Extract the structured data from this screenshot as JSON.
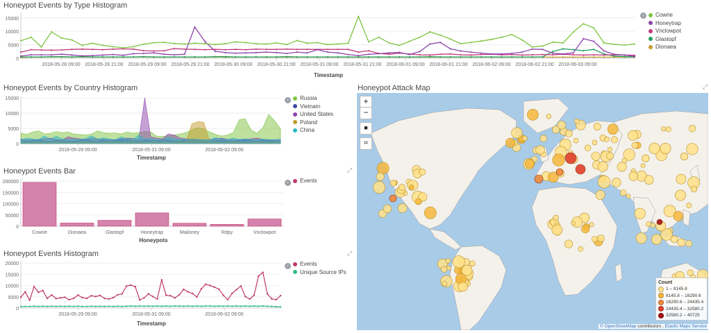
{
  "panels": {
    "type_hist": {
      "title": "Honeypot Events by Type Histogram",
      "xlabel": "Timestamp",
      "legend": [
        {
          "label": "Cowrie",
          "color": "#7ec440"
        },
        {
          "label": "Honeytrap",
          "color": "#8e44ad"
        },
        {
          "label": "Vnclowpot",
          "color": "#c0397a"
        },
        {
          "label": "Glastopf",
          "color": "#1e9e5e"
        },
        {
          "label": "Dionaea",
          "color": "#c49a2c"
        }
      ]
    },
    "country_hist": {
      "title": "Honeypot Events by Country Histogram",
      "xlabel": "Timestamp",
      "legend": [
        {
          "label": "Russia",
          "color": "#7ec440"
        },
        {
          "label": "Vietnam",
          "color": "#3b4aa0"
        },
        {
          "label": "United States",
          "color": "#8e44ad"
        },
        {
          "label": "Poland",
          "color": "#c49a2c"
        },
        {
          "label": "China",
          "color": "#2bb5c4"
        }
      ]
    },
    "events_bar": {
      "title": "Honeypot Events Bar",
      "xlabel": "Honeypots",
      "legend": [
        {
          "label": "Events",
          "color": "#c0396a"
        }
      ]
    },
    "events_hist": {
      "title": "Honeypot Events Histogram",
      "xlabel": "Timestamp",
      "legend": [
        {
          "label": "Events",
          "color": "#c0396a"
        },
        {
          "label": "Unique Source IPs",
          "color": "#2ebd85"
        }
      ]
    },
    "attack_map": {
      "title": "Honeypot Attack Map",
      "controls": {
        "zoom_in": "+",
        "zoom_out": "−",
        "draw": "■",
        "fit": "⌗"
      },
      "legend_title": "Count",
      "legend": [
        {
          "label": "1 – 8145.8",
          "color": "#ffe28a"
        },
        {
          "label": "8145.8 – 16290.6",
          "color": "#f6b73c"
        },
        {
          "label": "16290.6 – 24435.4",
          "color": "#f08a3a"
        },
        {
          "label": "24435.4 – 32580.2",
          "color": "#e0402a"
        },
        {
          "label": "32580.2 – 40725",
          "color": "#a30f15"
        }
      ],
      "attribution": {
        "osm": "© OpenStreetMap",
        "contrib": " contributors , ",
        "ems": "Elastic Maps Service"
      }
    }
  },
  "chart_data": [
    {
      "id": "type_hist",
      "type": "line",
      "title": "Honeypot Events by Type Histogram",
      "xlabel": "Timestamp",
      "ylabel": "",
      "ylim": [
        0,
        17000
      ],
      "yticks": [
        "15000",
        "10000",
        "5000",
        "0"
      ],
      "xticks": [
        "2018-05-28 09:00",
        "2018-05-28 21:00",
        "2018-05-29 09:00",
        "2018-05-29 21:00",
        "2018-05-30 09:00",
        "2018-05-30 21:00",
        "2018-05-31 09:00",
        "2018-05-31 21:00",
        "2018-06-01 09:00",
        "2018-06-01 21:00",
        "2018-06-02 09:00",
        "2018-06-02 21:00",
        "2018-06-03 09:00"
      ],
      "series": [
        {
          "name": "Cowrie",
          "color": "#7ec440",
          "values": [
            6500,
            7800,
            4200,
            9800,
            7500,
            6800,
            4800,
            5600,
            4800,
            4300,
            3900,
            4300,
            5200,
            5800,
            5900,
            5500,
            5300,
            5600,
            5400,
            5100,
            5400,
            6100,
            5800,
            5400,
            5300,
            5700,
            5100,
            6600,
            5600,
            5800,
            5100,
            5300,
            5600,
            15500,
            6100,
            7800,
            5700,
            4800,
            6300,
            7800,
            9800,
            8600,
            7100,
            5400,
            5900,
            6400,
            7000,
            7800,
            8800,
            6800,
            4200,
            4500,
            6000,
            5700,
            9700,
            12800,
            11300,
            5700,
            5200,
            4900,
            5300
          ]
        },
        {
          "name": "Honeytrap",
          "color": "#8e44ad",
          "values": [
            800,
            1300,
            1300,
            1300,
            1500,
            1200,
            900,
            1000,
            1200,
            1400,
            1100,
            1700,
            1800,
            2000,
            1500,
            1300,
            1500,
            11600,
            6200,
            2600,
            2100,
            1900,
            2000,
            2100,
            2300,
            2100,
            1800,
            2300,
            2000,
            3200,
            2300,
            2000,
            1400,
            1000,
            1500,
            1700,
            2000,
            2200,
            1400,
            2500,
            5300,
            5900,
            3500,
            2700,
            2300,
            1900,
            1600,
            1600,
            1800,
            2300,
            3400,
            3300,
            1900,
            1600,
            2000,
            7300,
            6300,
            2700,
            1500,
            1200,
            700
          ]
        },
        {
          "name": "Vnclowpot",
          "color": "#c0397a",
          "values": [
            2300,
            3200,
            3100,
            3000,
            3100,
            3300,
            3400,
            3300,
            3200,
            3400,
            3500,
            3400,
            2800,
            2700,
            2800,
            3600,
            3400,
            3300,
            3200,
            3300,
            3200,
            3300,
            3200,
            3400,
            3300,
            3300,
            3400,
            3300,
            3300,
            3300,
            3300,
            3300,
            3300,
            2300,
            2800,
            1800,
            1500,
            1900,
            1600,
            1300,
            1200,
            1500,
            1600,
            1300,
            1200,
            1400,
            1500,
            1300,
            1400,
            1200,
            1300,
            1400,
            1300,
            1500,
            1300,
            1200,
            1300,
            1200,
            1300,
            1200,
            1100
          ]
        },
        {
          "name": "Glastopf",
          "color": "#1e9e5e",
          "values": [
            500,
            500,
            500,
            600,
            600,
            500,
            600,
            500,
            500,
            500,
            500,
            500,
            600,
            500,
            500,
            500,
            500,
            500,
            500,
            600,
            600,
            500,
            500,
            500,
            500,
            500,
            600,
            500,
            500,
            500,
            500,
            500,
            500,
            500,
            500,
            500,
            500,
            500,
            500,
            500,
            600,
            500,
            500,
            500,
            500,
            500,
            500,
            500,
            500,
            500,
            500,
            500,
            2500,
            3500,
            3200,
            2800,
            3300,
            1600,
            800,
            600,
            500
          ]
        },
        {
          "name": "Dionaea",
          "color": "#c49a2c",
          "values": [
            300,
            400,
            400,
            500,
            500,
            400,
            500,
            400,
            400,
            400,
            400,
            500,
            500,
            400,
            400,
            500,
            400,
            400,
            400,
            500,
            400,
            400,
            400,
            500,
            400,
            400,
            400,
            400,
            400,
            400,
            400,
            400,
            400,
            400,
            400,
            400,
            400,
            400,
            400,
            400,
            400,
            400,
            400,
            400,
            400,
            400,
            400,
            400,
            400,
            400,
            400,
            400,
            400,
            400,
            400,
            400,
            400,
            400,
            400,
            400,
            400
          ]
        }
      ]
    },
    {
      "id": "country_hist",
      "type": "area",
      "title": "Honeypot Events by Country Histogram",
      "xlabel": "Timestamp",
      "ylabel": "",
      "ylim": [
        0,
        15500
      ],
      "yticks": [
        "15000",
        "10000",
        "5000",
        "0"
      ],
      "xticks": [
        "2018-05-29 09:00",
        "2018-05-31 09:00",
        "2018-06-02 09:00"
      ],
      "series": [
        {
          "name": "Russia",
          "color": "#7ec440",
          "values": [
            3500,
            3000,
            3800,
            4200,
            3200,
            3400,
            4000,
            3600,
            3800,
            3200,
            3000,
            2800,
            3200,
            4200,
            3600,
            3400,
            3500,
            3200,
            3800,
            3400,
            3600,
            4000,
            3800,
            2500,
            2400,
            2600,
            2800,
            3200,
            3600,
            4500,
            5200,
            4800,
            3800,
            3000,
            2500,
            2800,
            3600,
            7800,
            8200,
            4500,
            3400,
            5200,
            9600,
            7500,
            4800
          ]
        },
        {
          "name": "Vietnam",
          "color": "#3b4aa0",
          "values": [
            800,
            700,
            900,
            1200,
            800,
            600,
            1100,
            900,
            700,
            800,
            1000,
            1300,
            900,
            700,
            1200,
            800,
            1000,
            1400,
            1100,
            900,
            800,
            1200,
            1000,
            900,
            1300,
            1100,
            800,
            900,
            1200,
            1400,
            1100,
            900,
            800,
            1000,
            1200,
            900,
            800,
            1000,
            1300,
            900,
            800,
            1100,
            1000,
            900,
            800
          ]
        },
        {
          "name": "United States",
          "color": "#8e44ad",
          "values": [
            1500,
            1200,
            1400,
            1300,
            1600,
            1800,
            1400,
            1200,
            2200,
            1800,
            1600,
            1400,
            1800,
            1600,
            1400,
            1300,
            1200,
            1600,
            1800,
            1700,
            1400,
            15000,
            2200,
            1800,
            1600,
            3200,
            2800,
            1800,
            1600,
            1400,
            1300,
            1200,
            1400,
            1600,
            1800,
            1400,
            1200,
            1300,
            1400,
            1600,
            1800,
            1400,
            1200,
            1300,
            1400
          ]
        },
        {
          "name": "Poland",
          "color": "#c49a2c",
          "values": [
            500,
            400,
            500,
            600,
            500,
            400,
            500,
            600,
            500,
            400,
            500,
            600,
            500,
            400,
            500,
            600,
            500,
            400,
            500,
            600,
            500,
            400,
            500,
            600,
            500,
            400,
            500,
            600,
            500,
            6500,
            7200,
            7000,
            600,
            500,
            400,
            500,
            600,
            500,
            400,
            500,
            600,
            500,
            400,
            500,
            600
          ]
        },
        {
          "name": "China",
          "color": "#2bb5c4",
          "values": [
            1200,
            1800,
            1500,
            1300,
            2500,
            1400,
            2400,
            1600,
            1200,
            1500,
            1300,
            1700,
            2600,
            1400,
            1900,
            1500,
            1300,
            2200,
            1600,
            1400,
            2800,
            1500,
            1700,
            1300,
            1200,
            2100,
            1600,
            1400,
            1300,
            1500,
            1400,
            1300,
            1200,
            2000,
            1500,
            1300,
            1800,
            1400,
            1600,
            1300,
            1200,
            1500,
            1300,
            1200,
            1400
          ]
        }
      ]
    },
    {
      "id": "events_bar",
      "type": "bar",
      "title": "Honeypot Events Bar",
      "xlabel": "Honeypots",
      "ylabel": "",
      "ylim": [
        0,
        210000
      ],
      "yticks": [
        "200000",
        "150000",
        "100000",
        "50000",
        "0"
      ],
      "categories": [
        "Cowrie",
        "Dionaea",
        "Glastopf",
        "Honeytrap",
        "Mailoney",
        "Rdpy",
        "Vnclowpot"
      ],
      "series": [
        {
          "name": "Events",
          "color": "#d483ad",
          "values": [
            195000,
            14000,
            26000,
            59000,
            13000,
            8000,
            32000
          ]
        }
      ]
    },
    {
      "id": "events_hist",
      "type": "line",
      "title": "Honeypot Events Histogram",
      "xlabel": "Timestamp",
      "ylabel": "",
      "ylim": [
        0,
        21000
      ],
      "yticks": [
        "20000",
        "15000",
        "10000",
        "5000",
        "0"
      ],
      "xticks": [
        "2018-05-29 09:00",
        "2018-05-31 09:00",
        "2018-06-02 09:00"
      ],
      "series": [
        {
          "name": "Events",
          "color": "#c0396a",
          "values": [
            4800,
            7200,
            3500,
            9500,
            7000,
            7800,
            4300,
            5800,
            4200,
            4500,
            4800,
            3700,
            4300,
            5800,
            4600,
            4300,
            5500,
            5100,
            5600,
            4300,
            4000,
            4600,
            5900,
            6300,
            9800,
            10200,
            9500,
            3600,
            4500,
            6300,
            5100,
            4000,
            12500,
            5700,
            5500,
            4500,
            5900,
            8300,
            7200,
            6500,
            4900,
            8500,
            10600,
            10000,
            9300,
            8400,
            5700,
            3700,
            6500,
            8200,
            9800,
            5100,
            4000,
            5700,
            14200,
            15900,
            6300,
            4100,
            3700,
            5500
          ]
        },
        {
          "name": "Unique Source IPs",
          "color": "#2ebd85",
          "values": [
            600,
            700,
            700,
            800,
            700,
            800,
            700,
            800,
            700,
            800,
            700,
            800,
            700,
            800,
            700,
            700,
            800,
            700,
            800,
            700,
            800,
            700,
            800,
            700,
            800,
            900,
            800,
            900,
            800,
            900,
            800,
            900,
            800,
            900,
            800,
            900,
            900,
            800,
            900,
            800,
            900,
            800,
            900,
            900,
            800,
            900,
            800,
            900,
            800,
            900,
            800,
            900,
            800,
            900,
            800,
            900,
            800,
            700,
            600,
            500
          ]
        }
      ]
    }
  ]
}
